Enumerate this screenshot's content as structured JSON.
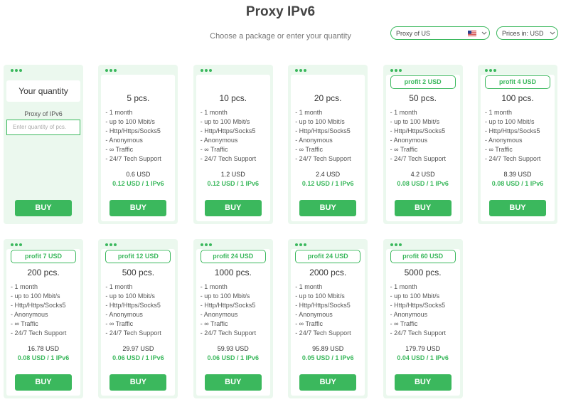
{
  "header": {
    "title": "Proxy IPv6",
    "subtitle": "Choose a package or enter your quantity"
  },
  "controls": {
    "country": "Proxy of US",
    "currency": "Prices in: USD"
  },
  "custom": {
    "title": "Your quantity",
    "label": "Proxy of IPv6",
    "placeholder": "Enter quantity of pcs.",
    "button": "BUY"
  },
  "features": [
    "- 1 month",
    "- up to 100 Mbit/s",
    "- Http/Https/Socks5",
    "- Anonymous",
    "- ∞ Traffic",
    "- 24/7 Tech Support"
  ],
  "button": "BUY",
  "packages": [
    {
      "quantity": "5 pcs.",
      "price": "0.6 USD",
      "per_unit": "0.12 USD / 1 IPv6"
    },
    {
      "quantity": "10 pcs.",
      "price": "1.2 USD",
      "per_unit": "0.12 USD / 1 IPv6"
    },
    {
      "quantity": "20 pcs.",
      "price": "2.4 USD",
      "per_unit": "0.12 USD / 1 IPv6"
    },
    {
      "profit": "profit 2 USD",
      "quantity": "50 pcs.",
      "price": "4.2 USD",
      "per_unit": "0.08 USD / 1 IPv6"
    },
    {
      "profit": "profit 4 USD",
      "quantity": "100 pcs.",
      "price": "8.39 USD",
      "per_unit": "0.08 USD / 1 IPv6"
    },
    {
      "profit": "profit 7 USD",
      "quantity": "200 pcs.",
      "price": "16.78 USD",
      "per_unit": "0.08 USD / 1 IPv6"
    },
    {
      "profit": "profit 12 USD",
      "quantity": "500 pcs.",
      "price": "29.97 USD",
      "per_unit": "0.06 USD / 1 IPv6"
    },
    {
      "profit": "profit 24 USD",
      "quantity": "1000 pcs.",
      "price": "59.93 USD",
      "per_unit": "0.06 USD / 1 IPv6"
    },
    {
      "profit": "profit 24 USD",
      "quantity": "2000 pcs.",
      "price": "95.89 USD",
      "per_unit": "0.05 USD / 1 IPv6"
    },
    {
      "profit": "profit 60 USD",
      "quantity": "5000 pcs.",
      "price": "179.79 USD",
      "per_unit": "0.04 USD / 1 IPv6"
    }
  ]
}
